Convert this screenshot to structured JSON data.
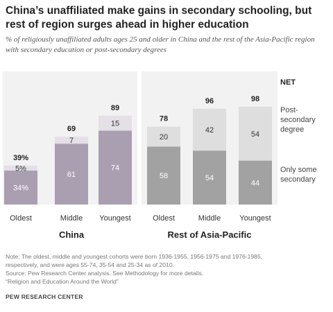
{
  "header": {
    "title": "China’s unaffiliated make gains in secondary schooling, but rest of region surges ahead in higher education",
    "subtitle": "% of religiously unaffiliated adults ages 25 and older in China and the rest of the Asia-Pacific region with secondary education or post-secondary degrees"
  },
  "colors": {
    "china_secondary": "#a99fb1",
    "china_postsecondary": "#e4e0e6",
    "rest_secondary": "#a2a2a2",
    "rest_postsecondary": "#dedede",
    "secondary_label": "#ffffff",
    "postsecondary_label": "#333333",
    "net_label": "#222222"
  },
  "chart_data": [
    {
      "type": "bar",
      "stacked": true,
      "group": "China",
      "categories": [
        "Oldest",
        "Middle",
        "Youngest"
      ],
      "series": [
        {
          "name": "Only some secondary",
          "values": [
            34,
            61,
            74
          ],
          "labels": [
            "34%",
            "61",
            "74"
          ]
        },
        {
          "name": "Post-secondary degree",
          "values": [
            5,
            7,
            15
          ],
          "labels": [
            "5%",
            "7",
            "15"
          ]
        }
      ],
      "net": [
        39,
        69,
        89
      ],
      "net_labels": [
        "39%",
        "69",
        "89"
      ],
      "ylim": [
        0,
        100
      ]
    },
    {
      "type": "bar",
      "stacked": true,
      "group": "Rest of Asia-Pacific",
      "categories": [
        "Oldest",
        "Middle",
        "Youngest"
      ],
      "series": [
        {
          "name": "Only some secondary",
          "values": [
            58,
            54,
            44
          ],
          "labels": [
            "58",
            "54",
            "44"
          ]
        },
        {
          "name": "Post-secondary degree",
          "values": [
            20,
            42,
            54
          ],
          "labels": [
            "20",
            "42",
            "54"
          ]
        }
      ],
      "net": [
        78,
        96,
        98
      ],
      "net_labels": [
        "78",
        "96",
        "98"
      ],
      "ylim": [
        0,
        100
      ]
    }
  ],
  "legend": {
    "net": "NET",
    "postsecondary": [
      "Post-",
      "secondary",
      "degree"
    ],
    "secondary": [
      "Only some",
      "secondary"
    ]
  },
  "footer": {
    "note1": "Note: The oldest, middle and youngest cohorts were born 1936-1955, 1956-1975 and 1976-1985,",
    "note2": "respectively, and were ages 55-74, 35-54 and 25-34 as of 2010.",
    "source": "Source: Pew Research Center analysis. See Methodology for more details.",
    "report": "“Religion and Education Around the World”",
    "org": "PEW RESEARCH CENTER"
  }
}
